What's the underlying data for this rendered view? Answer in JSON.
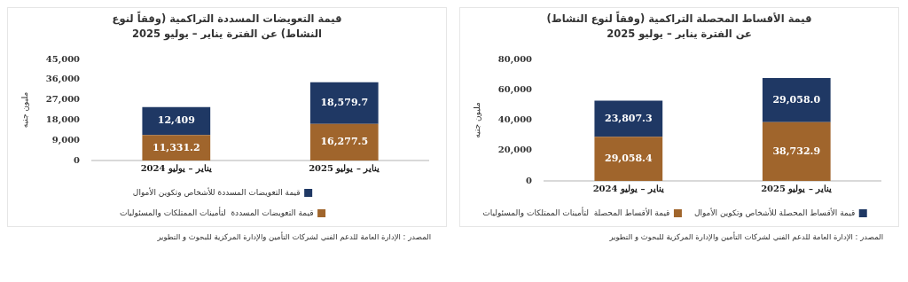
{
  "chart_data": [
    {
      "type": "bar",
      "title": "قيمة التعويضات المسددة التراكمية (وفقاً لنوع النشاط) عن الفترة يناير – يوليو 2025",
      "ylabel": "مليون جنيه",
      "categories": [
        "يناير – يوليو 2024",
        "يناير – يوليو 2025"
      ],
      "stacked": true,
      "ylim": [
        0,
        45000
      ],
      "yticks": [
        {
          "value": 0,
          "label": "0"
        },
        {
          "value": 9000,
          "label": "9,000"
        },
        {
          "value": 18000,
          "label": "18,000"
        },
        {
          "value": 27000,
          "label": "27,000"
        },
        {
          "value": 36000,
          "label": "36,000"
        },
        {
          "value": 45000,
          "label": "45,000"
        }
      ],
      "grid": false,
      "legend": "bottom",
      "series": [
        {
          "name": "قيمة التعويضات المسددة  لتأمينات الممتلكات والمسئوليات",
          "color": "#a0652c",
          "values": [
            11331.2,
            16277.5
          ],
          "value_labels": [
            "11,331.2",
            "16,277.5"
          ]
        },
        {
          "name": "قيمة التعويضات المسددة للأشخاص وتكوين الأموال",
          "color": "#1f3864",
          "values": [
            12409,
            18579.7
          ],
          "value_labels": [
            "12,409",
            "18,579.7"
          ]
        }
      ],
      "annotations": [
        "المصدر : الإدارة العامة للدعم الفني لشركات التأمين والإدارة المركزية للبحوث و التطوير"
      ]
    },
    {
      "type": "bar",
      "title": "قيمة الأقساط المحصلة التراكمية (وفقاً لنوع النشاط) عن الفترة يناير – يوليو 2025",
      "ylabel": "مليون جنيه",
      "categories": [
        "يناير – يوليو 2024",
        "يناير – يوليو 2025"
      ],
      "stacked": true,
      "ylim": [
        0,
        80000
      ],
      "yticks": [
        {
          "value": 0,
          "label": "0"
        },
        {
          "value": 20000,
          "label": "20,000"
        },
        {
          "value": 40000,
          "label": "40,000"
        },
        {
          "value": 60000,
          "label": "60,000"
        },
        {
          "value": 80000,
          "label": "80,000"
        }
      ],
      "grid": false,
      "legend": "bottom",
      "series": [
        {
          "name": "قيمة الأقساط المحصلة  لتأمينات الممتلكات والمسئوليات",
          "color": "#a0652c",
          "values": [
            29058.4,
            38732.9
          ],
          "value_labels": [
            "29,058.4",
            "38,732.9"
          ]
        },
        {
          "name": "قيمة الأقساط المحصلة للأشخاص وتكوين الأموال",
          "color": "#1f3864",
          "values": [
            23807.3,
            29058.0
          ],
          "value_labels": [
            "23,807.3",
            "29,058.0"
          ]
        }
      ],
      "annotations": [
        "المصدر : الإدارة العامة للدعم الفني لشركات التأمين والإدارة المركزية للبحوث و التطوير"
      ]
    }
  ]
}
